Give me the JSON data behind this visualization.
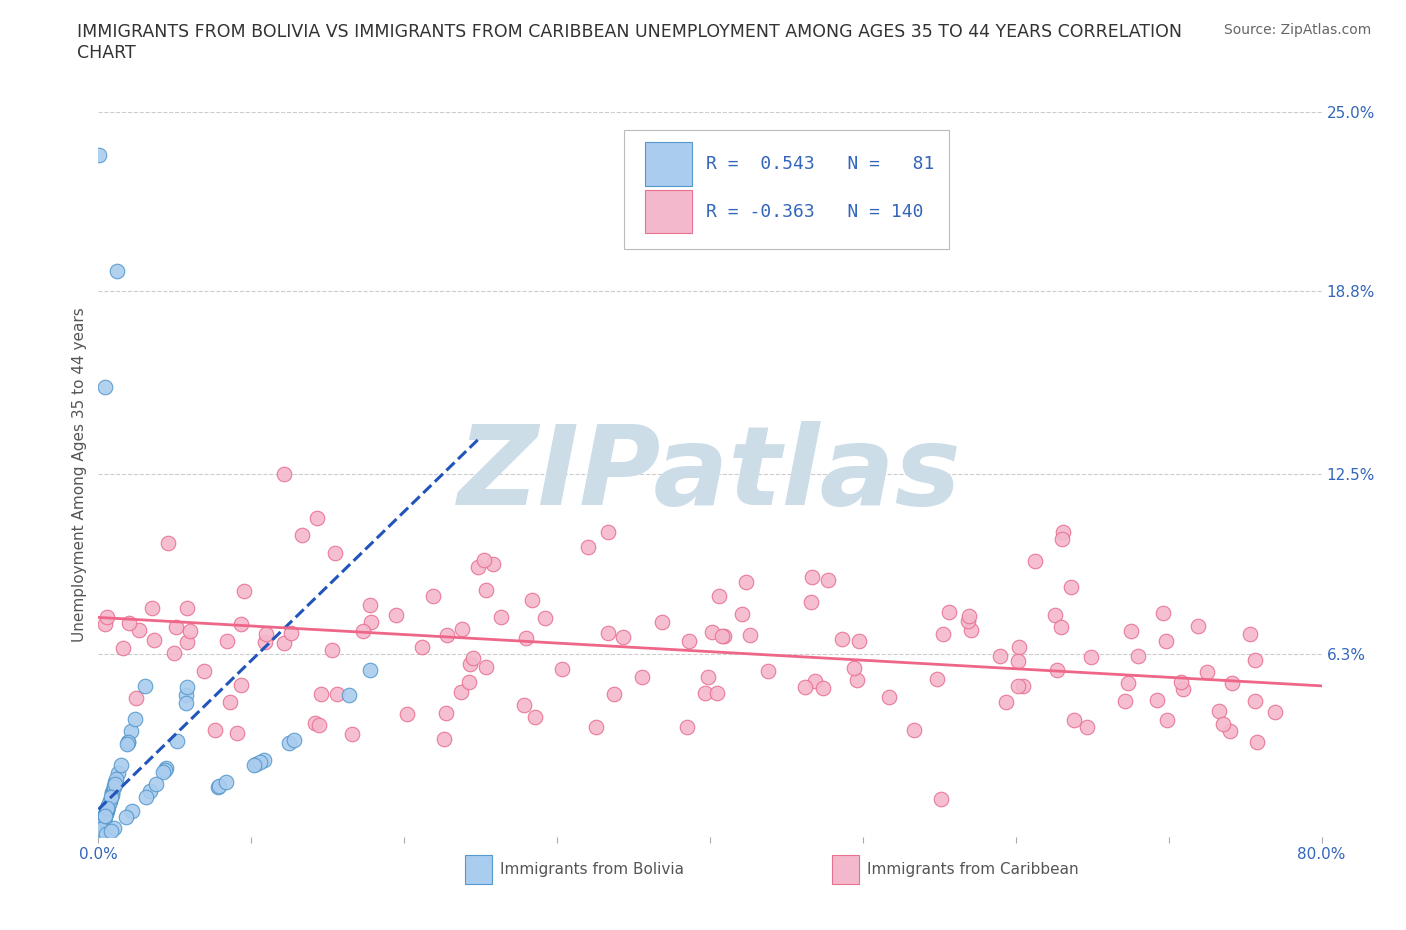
{
  "title": "IMMIGRANTS FROM BOLIVIA VS IMMIGRANTS FROM CARIBBEAN UNEMPLOYMENT AMONG AGES 35 TO 44 YEARS CORRELATION\nCHART",
  "source": "Source: ZipAtlas.com",
  "ylabel": "Unemployment Among Ages 35 to 44 years",
  "xlim": [
    0.0,
    0.8
  ],
  "ylim": [
    0.0,
    0.25
  ],
  "ytick_vals": [
    0.0,
    0.063,
    0.125,
    0.188,
    0.25
  ],
  "ytick_labels_right": [
    "6.3%",
    "12.5%",
    "18.8%",
    "25.0%"
  ],
  "xtick_positions": [
    0.0,
    0.1,
    0.2,
    0.3,
    0.4,
    0.5,
    0.6,
    0.7,
    0.8
  ],
  "xtick_labels": [
    "0.0%",
    "",
    "",
    "",
    "",
    "",
    "",
    "",
    "80.0%"
  ],
  "watermark": "ZIPatlas",
  "watermark_color": "#ccdde8",
  "background_color": "#ffffff",
  "grid_color": "#cccccc",
  "bolivia_color": "#aaccee",
  "caribbean_color": "#f4b8cc",
  "bolivia_edge_color": "#5599cc",
  "caribbean_edge_color": "#e87090",
  "bolivia_trend_color": "#2255bb",
  "caribbean_trend_color": "#ee6688",
  "legend_text_color": "#3366bb",
  "legend_bolivia_fill": "#aaccee",
  "legend_bolivia_edge": "#5599cc",
  "legend_caribbean_fill": "#f4b8cc",
  "legend_caribbean_edge": "#e87090",
  "bolivia_R": 0.543,
  "bolivia_N": 81,
  "caribbean_R": -0.363,
  "caribbean_N": 140,
  "title_fontsize": 12.5,
  "source_fontsize": 10,
  "ylabel_fontsize": 11,
  "tick_fontsize": 11,
  "legend_fontsize": 13
}
